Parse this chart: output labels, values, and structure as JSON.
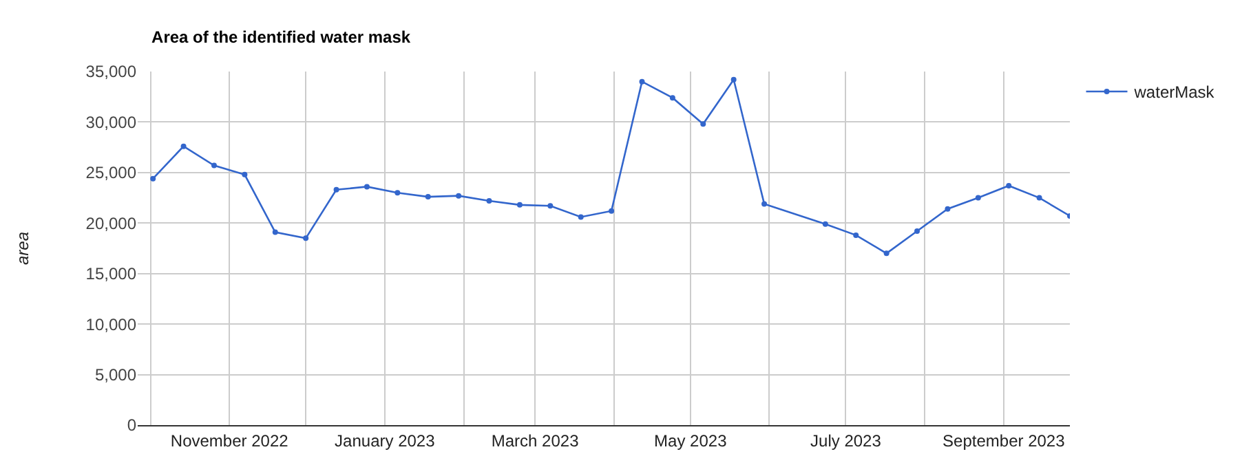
{
  "chart_data": {
    "type": "line",
    "title": "Area of the identified water mask",
    "ylabel": "area",
    "x": [
      "2022-10-02",
      "2022-10-14",
      "2022-10-26",
      "2022-11-07",
      "2022-11-19",
      "2022-12-01",
      "2022-12-13",
      "2022-12-25",
      "2023-01-06",
      "2023-01-18",
      "2023-01-30",
      "2023-02-11",
      "2023-02-23",
      "2023-03-07",
      "2023-03-19",
      "2023-03-31",
      "2023-04-12",
      "2023-04-24",
      "2023-05-06",
      "2023-05-18",
      "2023-05-30",
      "2023-06-23",
      "2023-07-05",
      "2023-07-17",
      "2023-07-29",
      "2023-08-10",
      "2023-08-22",
      "2023-09-03",
      "2023-09-15",
      "2023-09-27"
    ],
    "series": [
      {
        "name": "waterMask",
        "color": "#3366cc",
        "values": [
          24400,
          27600,
          25700,
          24800,
          19100,
          18500,
          23300,
          23600,
          23000,
          22600,
          22700,
          22200,
          21800,
          21700,
          20600,
          21200,
          34000,
          32400,
          29800,
          34200,
          21900,
          19900,
          18800,
          17000,
          19200,
          21400,
          22500,
          23700,
          22500,
          20700
        ]
      }
    ],
    "xlim": [
      "2022-09-26",
      "2023-09-27"
    ],
    "xticks": [
      {
        "value": "2022-10-01",
        "label": null
      },
      {
        "value": "2022-11-01",
        "label": "November 2022"
      },
      {
        "value": "2022-12-01",
        "label": null
      },
      {
        "value": "2023-01-01",
        "label": "January 2023"
      },
      {
        "value": "2023-02-01",
        "label": null
      },
      {
        "value": "2023-03-01",
        "label": "March 2023"
      },
      {
        "value": "2023-04-01",
        "label": null
      },
      {
        "value": "2023-05-01",
        "label": "May 2023"
      },
      {
        "value": "2023-06-01",
        "label": null
      },
      {
        "value": "2023-07-01",
        "label": "July 2023"
      },
      {
        "value": "2023-08-01",
        "label": null
      },
      {
        "value": "2023-09-01",
        "label": "September 2023"
      }
    ],
    "ylim": [
      0,
      35000
    ],
    "yticks": [
      {
        "value": 0,
        "label": "0"
      },
      {
        "value": 5000,
        "label": "5,000"
      },
      {
        "value": 10000,
        "label": "10,000"
      },
      {
        "value": 15000,
        "label": "15,000"
      },
      {
        "value": 20000,
        "label": "20,000"
      },
      {
        "value": 25000,
        "label": "25,000"
      },
      {
        "value": 30000,
        "label": "30,000"
      },
      {
        "value": 35000,
        "label": "35,000"
      }
    ],
    "grid": true,
    "legend": "top right",
    "marker": "circle",
    "line_style": "solid"
  }
}
